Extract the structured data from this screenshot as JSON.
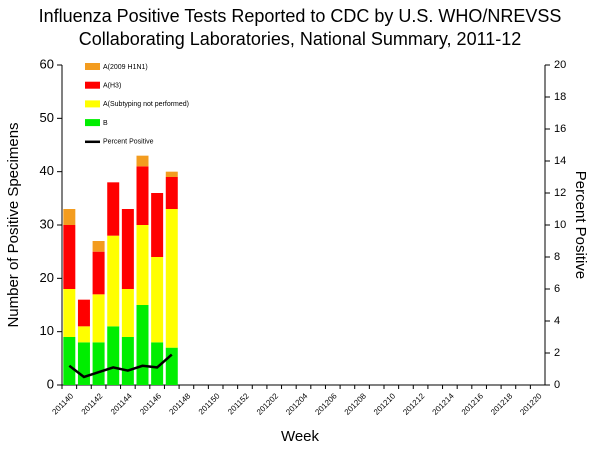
{
  "chart_data": {
    "type": "bar",
    "title": [
      "Influenza Positive Tests Reported to CDC by U.S. WHO/NREVSS",
      "Collaborating Laboratories, National Summary, 2011-12"
    ],
    "x_label": "Week",
    "y_label": "Number of Positive Specimens",
    "y2_label": "Percent Positive",
    "stacked": true,
    "categories": [
      "201140",
      null,
      "201142",
      null,
      "201144",
      null,
      "201146",
      null,
      "201148",
      null,
      "201150",
      null,
      "201152",
      null,
      "201202",
      null,
      "201204",
      null,
      "201206",
      null,
      "201208",
      null,
      "201210",
      null,
      "201212",
      null,
      "201214",
      null,
      "201216",
      null,
      "201218",
      null,
      "201220"
    ],
    "series": [
      {
        "name": "A(2009 H1N1)",
        "color": "#f39c1f",
        "values": [
          3,
          0,
          2,
          0,
          0,
          2,
          0,
          1,
          null,
          null,
          null,
          null,
          null,
          null,
          null,
          null,
          null,
          null,
          null,
          null,
          null,
          null,
          null,
          null,
          null,
          null,
          null,
          null,
          null,
          null,
          null,
          null,
          null
        ]
      },
      {
        "name": "A(H3)",
        "color": "#ff0000",
        "values": [
          12,
          5,
          8,
          10,
          15,
          11,
          12,
          6,
          null,
          null,
          null,
          null,
          null,
          null,
          null,
          null,
          null,
          null,
          null,
          null,
          null,
          null,
          null,
          null,
          null,
          null,
          null,
          null,
          null,
          null,
          null,
          null,
          null
        ]
      },
      {
        "name": "A(Subtyping not performed)",
        "color": "#ffff00",
        "values": [
          9,
          3,
          9,
          17,
          9,
          15,
          16,
          26,
          null,
          null,
          null,
          null,
          null,
          null,
          null,
          null,
          null,
          null,
          null,
          null,
          null,
          null,
          null,
          null,
          null,
          null,
          null,
          null,
          null,
          null,
          null,
          null,
          null
        ]
      },
      {
        "name": "B",
        "color": "#00ee00",
        "values": [
          9,
          8,
          8,
          11,
          9,
          15,
          8,
          7,
          null,
          null,
          null,
          null,
          null,
          null,
          null,
          null,
          null,
          null,
          null,
          null,
          null,
          null,
          null,
          null,
          null,
          null,
          null,
          null,
          null,
          null,
          null,
          null,
          null
        ]
      },
      {
        "name": "Percent Positive",
        "type": "line",
        "axis": "y2",
        "color": "#000000",
        "values": [
          1.2,
          0.5,
          0.8,
          1.1,
          0.9,
          1.2,
          1.1,
          1.9,
          null,
          null,
          null,
          null,
          null,
          null,
          null,
          null,
          null,
          null,
          null,
          null,
          null,
          null,
          null,
          null,
          null,
          null,
          null,
          null,
          null,
          null,
          null,
          null,
          null
        ]
      }
    ],
    "ylim": [
      0,
      60
    ],
    "yticks": [
      0,
      10,
      20,
      30,
      40,
      50,
      60
    ],
    "y2lim": [
      0,
      20
    ],
    "y2ticks": [
      0,
      2,
      4,
      6,
      8,
      10,
      12,
      14,
      16,
      18,
      20
    ],
    "legend": "upper-left"
  }
}
